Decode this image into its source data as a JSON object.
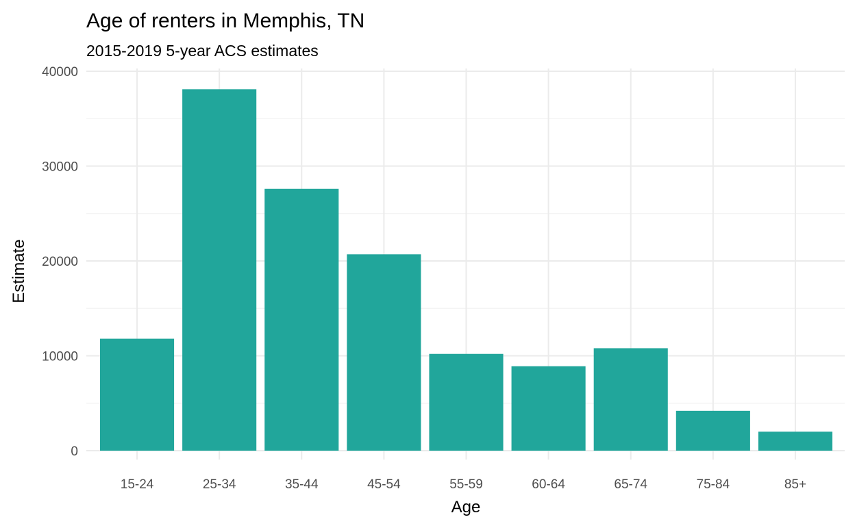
{
  "chart_data": {
    "type": "bar",
    "title": "Age of renters in Memphis, TN",
    "subtitle": "2015-2019 5-year ACS estimates",
    "xlabel": "Age",
    "ylabel": "Estimate",
    "categories": [
      "15-24",
      "25-34",
      "35-44",
      "45-54",
      "55-59",
      "60-64",
      "65-74",
      "75-84",
      "85+"
    ],
    "values": [
      11800,
      38100,
      27600,
      20700,
      10200,
      8900,
      10800,
      4200,
      2000
    ],
    "ylim": [
      0,
      40000
    ],
    "yticks": [
      "0",
      "10000",
      "20000",
      "30000",
      "40000"
    ],
    "grid": true,
    "legend": "none",
    "bar_color": "#21A69B"
  }
}
